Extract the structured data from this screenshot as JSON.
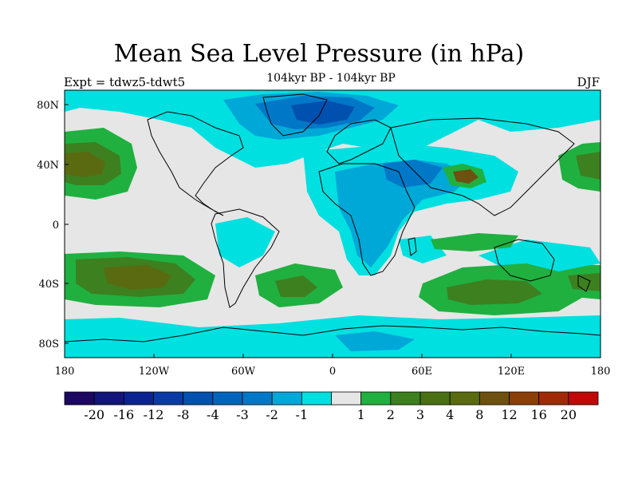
{
  "title": "Mean Sea Level Pressure (in hPa)",
  "subtitle": "104kyr BP - 104kyr BP",
  "left_label": "Expt = tdwz5-tdwt5",
  "right_label": "DJF",
  "colors": {
    "background": "#e6e6e6",
    "cyan": "#00e0e0",
    "light_blue": "#00a8d8",
    "mid_blue": "#0078c8",
    "dark_blue": "#0050b0",
    "green": "#20b040",
    "dark_green": "#3c8020",
    "olive": "#5a6a10",
    "brown": "#6e5010",
    "coast": "#000000"
  },
  "x_ticks": [
    "180",
    "120W",
    "60W",
    "0",
    "60E",
    "120E",
    "180"
  ],
  "y_ticks": [
    "80N",
    "40N",
    "0",
    "40S",
    "80S"
  ],
  "colorbar": {
    "labels": [
      "-20",
      "-16",
      "-12",
      "-8",
      "-4",
      "-3",
      "-2",
      "-1",
      "1",
      "2",
      "3",
      "4",
      "8",
      "12",
      "16",
      "20"
    ],
    "colors": [
      "#1c0860",
      "#12157a",
      "#0a2390",
      "#0a3aa6",
      "#0050b0",
      "#0064bc",
      "#0078c8",
      "#00a8d8",
      "#00e0e0",
      "#e6e6e6",
      "#20b040",
      "#3c8020",
      "#4a7014",
      "#5a6a10",
      "#6e5010",
      "#8a3e08",
      "#a02a08",
      "#c00808"
    ]
  },
  "chart_data": {
    "type": "heatmap",
    "title": "Mean Sea Level Pressure (in hPa)",
    "subtitle": "104kyr BP - 104kyr BP",
    "variable": "Mean Sea Level Pressure difference",
    "units": "hPa",
    "season": "DJF",
    "experiment": "tdwz5-tdwt5",
    "xlim": [
      -180,
      180
    ],
    "ylim": [
      -90,
      90
    ],
    "contour_levels": [
      -20,
      -16,
      -12,
      -8,
      -4,
      -3,
      -2,
      -1,
      1,
      2,
      3,
      4,
      8,
      12,
      16,
      20
    ]
  }
}
